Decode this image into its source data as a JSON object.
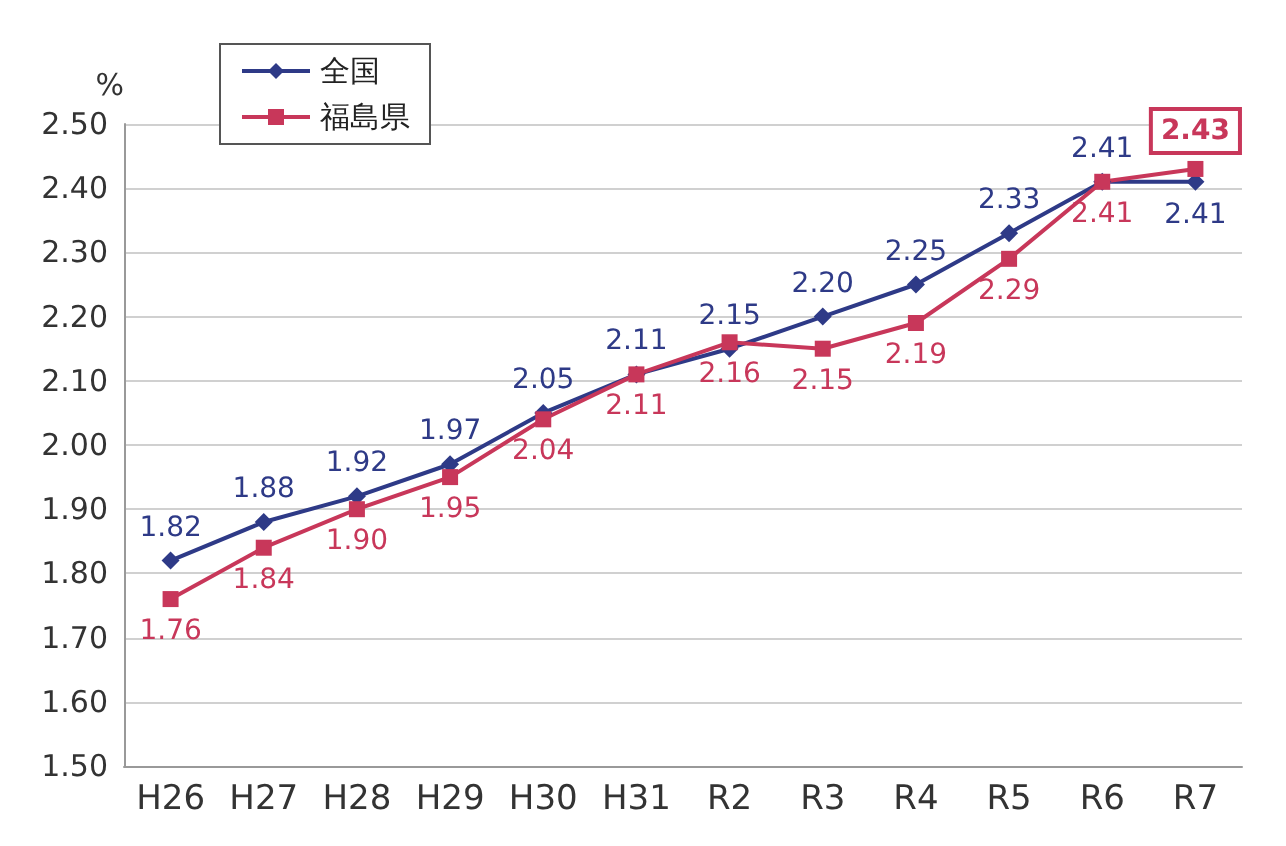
{
  "chart_data": {
    "type": "line",
    "ylabel": "%",
    "categories": [
      "H26",
      "H27",
      "H28",
      "H29",
      "H30",
      "H31",
      "R2",
      "R3",
      "R4",
      "R5",
      "R6",
      "R7"
    ],
    "series": [
      {
        "name": "全国",
        "color": "#2e3a87",
        "marker": "diamond",
        "values": [
          1.82,
          1.88,
          1.92,
          1.97,
          2.05,
          2.11,
          2.15,
          2.2,
          2.25,
          2.33,
          2.41,
          2.41
        ],
        "value_labels": [
          "1.82",
          "1.88",
          "1.92",
          "1.97",
          "2.05",
          "2.11",
          "2.15",
          "2.20",
          "2.25",
          "2.33",
          "2.41",
          "2.41"
        ]
      },
      {
        "name": "福島県",
        "color": "#c8375a",
        "marker": "square",
        "values": [
          1.76,
          1.84,
          1.9,
          1.95,
          2.04,
          2.11,
          2.16,
          2.15,
          2.19,
          2.29,
          2.41,
          2.43
        ],
        "value_labels": [
          "1.76",
          "1.84",
          "1.90",
          "1.95",
          "2.04",
          "2.11",
          "2.16",
          "2.15",
          "2.19",
          "2.29",
          "2.41",
          "2.43"
        ]
      }
    ],
    "ylim": [
      1.5,
      2.5
    ],
    "yticks": [
      {
        "value": 1.5,
        "label": "1.50"
      },
      {
        "value": 1.6,
        "label": "1.60"
      },
      {
        "value": 1.7,
        "label": "1.70"
      },
      {
        "value": 1.8,
        "label": "1.80"
      },
      {
        "value": 1.9,
        "label": "1.90"
      },
      {
        "value": 2.0,
        "label": "2.00"
      },
      {
        "value": 2.1,
        "label": "2.10"
      },
      {
        "value": 2.2,
        "label": "2.20"
      },
      {
        "value": 2.3,
        "label": "2.30"
      },
      {
        "value": 2.4,
        "label": "2.40"
      },
      {
        "value": 2.5,
        "label": "2.50"
      }
    ],
    "grid": "y",
    "legend": "top left"
  }
}
